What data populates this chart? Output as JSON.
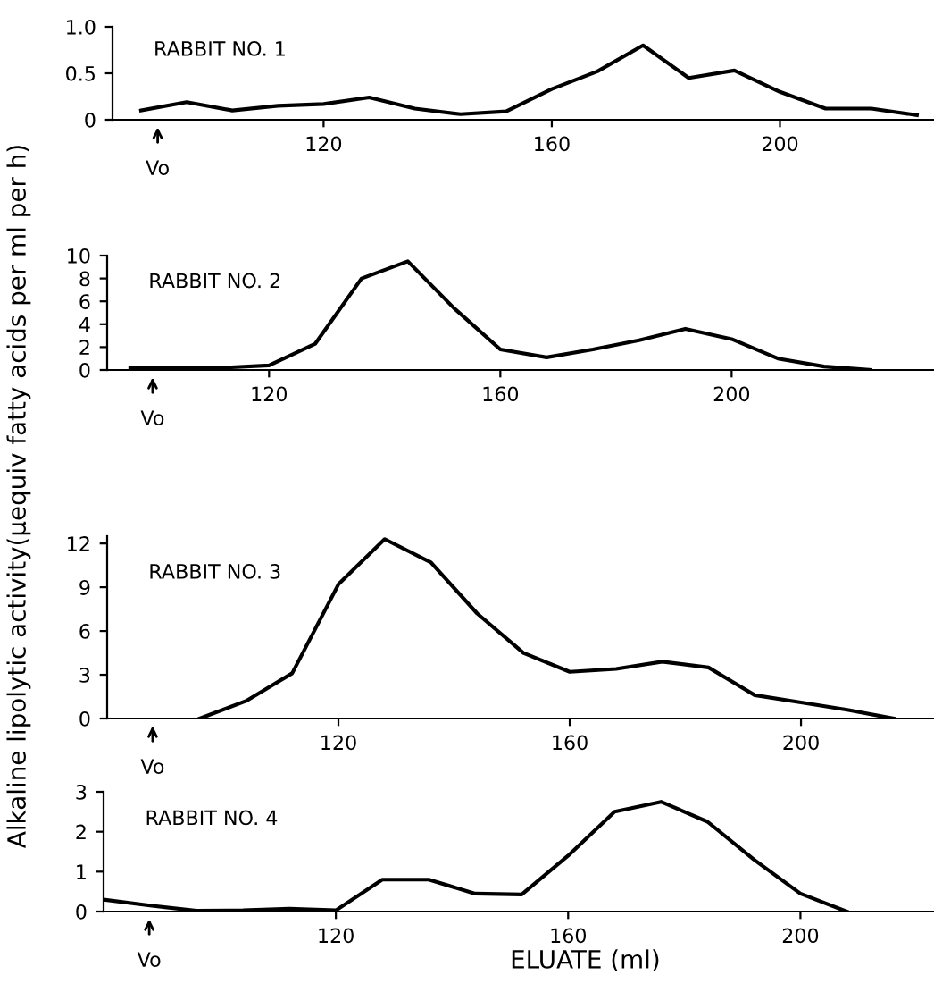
{
  "chart_data": [
    {
      "type": "line",
      "title": "RABBIT NO. 1",
      "ylabel": "Alkaline lipolytic activity(μequiv fatty acids per ml per h)",
      "color": "#000000",
      "x": [
        88,
        96,
        104,
        112,
        120,
        128,
        136,
        144,
        152,
        160,
        168,
        176,
        184,
        192,
        200,
        208,
        216,
        224
      ],
      "values": [
        0.1,
        0.19,
        0.1,
        0.15,
        0.17,
        0.24,
        0.12,
        0.06,
        0.09,
        0.33,
        0.52,
        0.8,
        0.45,
        0.53,
        0.3,
        0.12,
        0.12,
        0.05
      ],
      "xlim": [
        83,
        227
      ],
      "xticks": [
        120,
        160,
        200
      ],
      "ylim": [
        0,
        1.0
      ],
      "yticks": [
        0,
        0.5,
        {
          "value": 1.0,
          "label": "1.0"
        }
      ],
      "annotations": [
        "Vo"
      ]
    },
    {
      "type": "line",
      "title": "RABBIT NO. 2",
      "color": "#000000",
      "x": [
        96,
        104,
        112,
        120,
        128,
        136,
        144,
        152,
        160,
        168,
        176,
        184,
        192,
        200,
        208,
        216,
        224
      ],
      "values": [
        0.2,
        0.2,
        0.2,
        0.4,
        2.3,
        8.0,
        9.5,
        5.4,
        1.8,
        1.1,
        1.8,
        2.6,
        3.6,
        2.7,
        1.0,
        0.3,
        0
      ],
      "xlim": [
        92,
        235
      ],
      "xticks": [
        120,
        160,
        200
      ],
      "ylim": [
        0,
        10
      ],
      "yticks": [
        0,
        2,
        4,
        6,
        8,
        10
      ],
      "annotations": [
        "Vo"
      ]
    },
    {
      "type": "line",
      "title": "RABBIT NO. 3",
      "color": "#000000",
      "x": [
        96,
        104,
        112,
        120,
        128,
        136,
        144,
        152,
        160,
        168,
        176,
        184,
        192,
        200,
        208,
        216
      ],
      "values": [
        0,
        1.2,
        3.1,
        9.2,
        12.3,
        10.7,
        7.2,
        4.5,
        3.2,
        3.4,
        3.9,
        3.5,
        1.6,
        1.1,
        0.6,
        0
      ],
      "xlim": [
        80,
        223
      ],
      "xticks": [
        120,
        160,
        200
      ],
      "ylim": [
        0,
        12.5
      ],
      "yticks": [
        0,
        3,
        6,
        9,
        12
      ],
      "annotations": [
        "Vo"
      ]
    },
    {
      "type": "line",
      "title": "RABBIT NO. 4",
      "xlabel": "ELUATE (ml)",
      "color": "#000000",
      "x": [
        80,
        88,
        96,
        104,
        112,
        120,
        128,
        136,
        144,
        152,
        160,
        168,
        176,
        184,
        192,
        200,
        208
      ],
      "values": [
        0.3,
        0.15,
        0.02,
        0.03,
        0.07,
        0.03,
        0.8,
        0.8,
        0.45,
        0.43,
        1.4,
        2.5,
        2.75,
        2.25,
        1.3,
        0.45,
        0
      ],
      "xlim": [
        80,
        223
      ],
      "xticks": [
        120,
        160,
        200
      ],
      "ylim": [
        0,
        3
      ],
      "yticks": [
        0,
        1,
        2,
        3
      ],
      "annotations": [
        "Vo"
      ]
    }
  ]
}
